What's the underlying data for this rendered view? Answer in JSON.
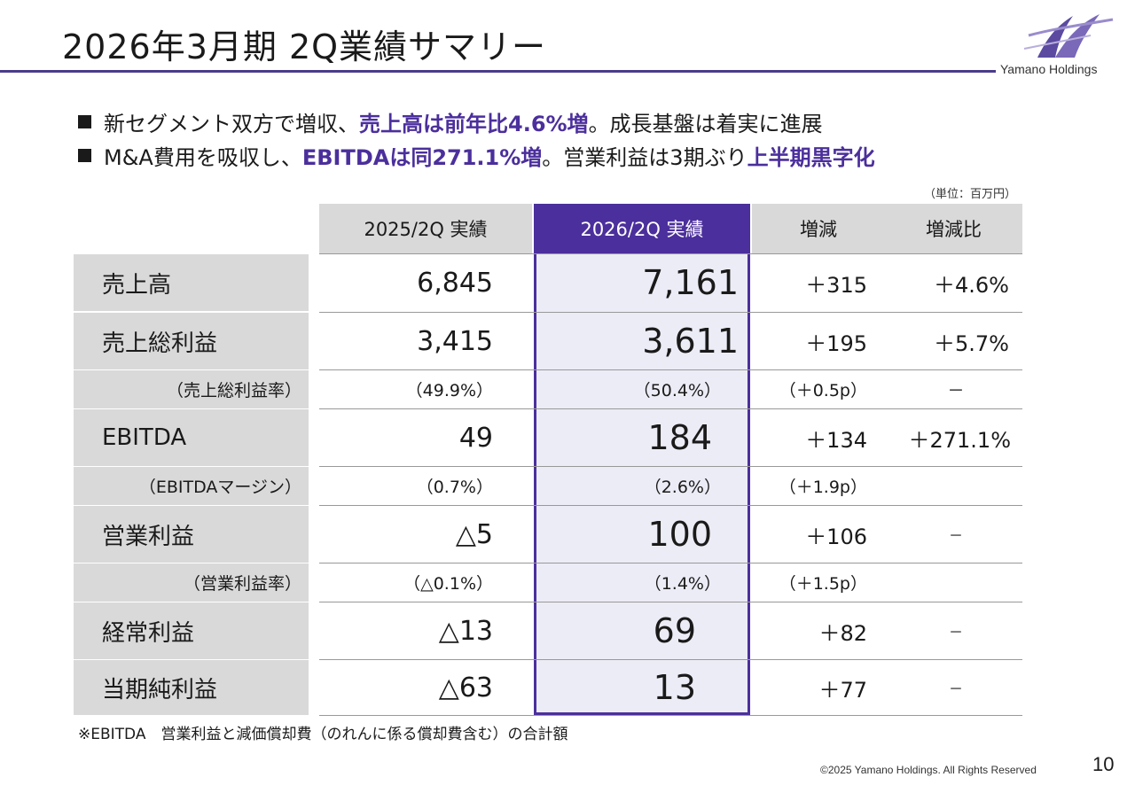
{
  "header": {
    "title": "2026年3月期 2Q業績サマリー",
    "logo_text": "Yamano Holdings"
  },
  "bullets": [
    {
      "pre": "新セグメント双方で増収、",
      "hl1": "売上高は前年比4.6%増",
      "mid": "。成長基盤は着実に進展",
      "hl2": "",
      "post": ""
    },
    {
      "pre": "M&A費用を吸収し、",
      "hl1": "EBITDAは同271.1%増",
      "mid": "。営業利益は3期ぶり",
      "hl2": "上半期黒字化",
      "post": ""
    }
  ],
  "unit": "（単位：百万円）",
  "table": {
    "headers": {
      "prev": "2025/2Q 実績",
      "cur": "2026/2Q 実績",
      "diff": "増減",
      "ratio": "増減比"
    },
    "rows": [
      {
        "label": "売上高",
        "prev": "6,845",
        "cur": "7,161",
        "diff": "＋315",
        "ratio": "＋4.6%"
      },
      {
        "label": "売上総利益",
        "prev": "3,415",
        "cur": "3,611",
        "diff": "＋195",
        "ratio": "＋5.7%"
      },
      {
        "label": "（売上総利益率）",
        "prev": "（49.9%）",
        "cur": "（50.4%）",
        "diff": "（＋0.5p）",
        "ratio": "－"
      },
      {
        "label": "EBITDA",
        "prev": "49",
        "cur": "184",
        "diff": "＋134",
        "ratio": "＋271.1%"
      },
      {
        "label": "（EBITDAマージン）",
        "prev": "（0.7%）",
        "cur": "（2.6%）",
        "diff": "（＋1.9p）",
        "ratio": ""
      },
      {
        "label": "営業利益",
        "prev": "△5",
        "cur": "100",
        "diff": "＋106",
        "ratio": "－"
      },
      {
        "label": "（営業利益率）",
        "prev": "（△0.1%）",
        "cur": "（1.4%）",
        "diff": "（＋1.5p）",
        "ratio": ""
      },
      {
        "label": "経常利益",
        "prev": "△13",
        "cur": "69",
        "diff": "＋82",
        "ratio": "－"
      },
      {
        "label": "当期純利益",
        "prev": "△63",
        "cur": "13",
        "diff": "＋77",
        "ratio": "－"
      }
    ]
  },
  "footnote": "※EBITDA　営業利益と減価償却費（のれんに係る償却費含む）の合計額",
  "footer": {
    "copyright": "©2025 Yamano Holdings. All Rights Reserved",
    "page": "10"
  },
  "colors": {
    "accent": "#4b2f9c",
    "label_bg": "#d9d9d9",
    "highlight_bg": "#ececf6"
  }
}
